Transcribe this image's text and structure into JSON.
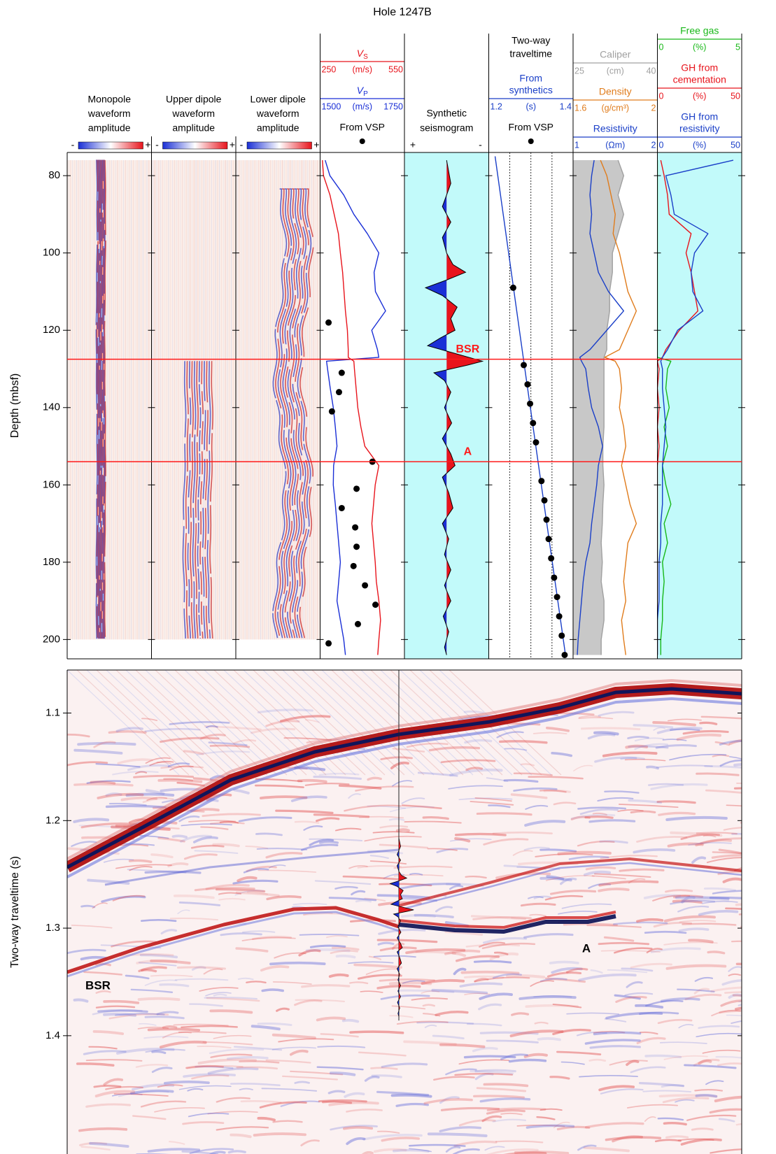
{
  "chart_data": [
    {
      "type": "log",
      "title": "Hole 1247B",
      "ylabel": "Depth (mbsf)",
      "ylim": [
        74,
        205
      ],
      "yticks": [
        80,
        100,
        120,
        140,
        160,
        180,
        200
      ],
      "depth": [
        76,
        80,
        85,
        90,
        95,
        100,
        105,
        110,
        115,
        120,
        125,
        127,
        128,
        130,
        135,
        140,
        145,
        150,
        155,
        160,
        165,
        170,
        175,
        180,
        185,
        190,
        195,
        200,
        204
      ],
      "horizons": [
        {
          "label": "BSR",
          "value": 127.5,
          "color": "#ff1a1a"
        },
        {
          "label": "A",
          "value": 154,
          "color": "#ff1a1a"
        }
      ],
      "tracks": [
        {
          "type": "waveform",
          "title": [
            "Monopole",
            "waveform",
            "amplitude"
          ],
          "ends": [
            "-",
            "+"
          ],
          "interval": [
            76,
            200
          ]
        },
        {
          "type": "waveform",
          "title": [
            "Upper dipole",
            "waveform",
            "amplitude"
          ],
          "ends": [
            "-",
            "+"
          ],
          "interval": [
            76,
            200
          ]
        },
        {
          "type": "waveform",
          "title": [
            "Lower dipole",
            "waveform",
            "amplitude"
          ],
          "ends": [
            "-",
            "+"
          ],
          "interval": [
            76,
            200
          ]
        },
        {
          "type": "log",
          "series": [
            {
              "name": [
                "V"
              ],
              "sub": "S",
              "color": "#e8141c",
              "xlim": [
                250,
                550
              ],
              "unit": "(m/s)",
              "values": [
                258,
                262,
                285,
                300,
                315,
                322,
                330,
                335,
                340,
                347,
                350,
                350,
                370,
                372,
                378,
                384,
                395,
                409,
                459,
                446,
                440,
                434,
                440,
                446,
                450,
                459,
                465,
                459,
                455
              ]
            },
            {
              "name": [
                "V"
              ],
              "sub": "P",
              "color": "#1a2fd6",
              "xlim": [
                1500,
                1750
              ],
              "unit": "(m/s)",
              "values": [
                1515,
                1529,
                1570,
                1600,
                1640,
                1674,
                1660,
                1664,
                1694,
                1653,
                1670,
                1674,
                1519,
                1522,
                1530,
                1539,
                1545,
                1550,
                1540,
                1539,
                1545,
                1550,
                1555,
                1560,
                1555,
                1550,
                1560,
                1570,
                1575
              ]
            }
          ],
          "points": {
            "name": "From VSP",
            "color": "#000000",
            "axis": 1,
            "depth": [
              118,
              131,
              136,
              141,
              154,
              161,
              166,
              171,
              176,
              181,
              186,
              191,
              196,
              201
            ],
            "values": [
              1525,
              1564,
              1556,
              1535,
              1655,
              1608,
              1564,
              1604,
              1608,
              1599,
              1633,
              1664,
              1612,
              1525
            ]
          }
        },
        {
          "type": "synthetic",
          "title": [
            "Synthetic",
            "seismogram"
          ],
          "ends": [
            "+",
            "-"
          ],
          "background": "#c2fafa",
          "series": [
            {
              "xlim": [
                1,
                -1
              ],
              "pos_color": "#1a2fd6",
              "neg_color": "#e8141c",
              "depth": [
                76,
                82,
                88,
                92,
                96,
                100,
                103,
                105,
                107,
                109,
                111,
                114,
                117,
                120,
                122,
                124,
                126,
                128,
                129,
                131,
                133,
                136,
                140,
                144,
                148,
                152,
                155,
                158,
                162,
                166,
                170,
                174,
                178,
                182,
                186,
                190,
                194,
                198,
                202,
                204
              ],
              "values": [
                0,
                -0.1,
                0.1,
                -0.1,
                0.1,
                0,
                -0.15,
                -0.45,
                0,
                0.5,
                0.1,
                -0.25,
                -0.1,
                -0.2,
                0.15,
                0.45,
                -0.2,
                -0.85,
                -0.5,
                0.3,
                0.05,
                -0.1,
                0.05,
                -0.12,
                0.1,
                -0.1,
                -0.2,
                0.1,
                -0.05,
                -0.15,
                0.1,
                -0.05,
                0.05,
                -0.1,
                0.05,
                -0.1,
                0.08,
                -0.05,
                0.05,
                0
              ]
            }
          ]
        },
        {
          "type": "log",
          "title": [
            "Two-way",
            "traveltime"
          ],
          "xgrid": [
            1.25,
            1.3,
            1.35
          ],
          "series": [
            {
              "name": [
                "From",
                "synthetics"
              ],
              "color": "#1a3fc8",
              "xlim": [
                1.2,
                1.4
              ],
              "unit": "(s)",
              "depth": [
                75,
                128,
                204
              ],
              "values": [
                1.215,
                1.283,
                1.382
              ]
            }
          ],
          "points": {
            "name": "From VSP",
            "color": "#000000",
            "axis": 0,
            "depth": [
              109,
              129,
              134,
              139,
              144,
              149,
              159,
              164,
              169,
              174,
              179,
              184,
              189,
              194,
              199,
              204
            ],
            "values": [
              1.258,
              1.283,
              1.292,
              1.298,
              1.305,
              1.312,
              1.325,
              1.332,
              1.337,
              1.342,
              1.348,
              1.355,
              1.362,
              1.367,
              1.373,
              1.38
            ]
          }
        },
        {
          "type": "log",
          "series": [
            {
              "name": [
                "Caliper"
              ],
              "color": "#a0a0a0",
              "fill": "left",
              "fill_color": "#c8c8c8",
              "xlim": [
                25,
                40
              ],
              "unit": "(cm)",
              "values": [
                33,
                34,
                33,
                34,
                33,
                32,
                32,
                31.5,
                31.5,
                31,
                31,
                30.5,
                30.5,
                30.5,
                30.5,
                30.5,
                30.5,
                30.3,
                30.3,
                30.5,
                30.3,
                30.2,
                30,
                30.2,
                30,
                30.5,
                30.5,
                30,
                30
              ]
            },
            {
              "name": [
                "Density"
              ],
              "color": "#e07c1c",
              "xlim": [
                1.6,
                2
              ],
              "unit": "(g/cm³)",
              "values": [
                1.73,
                1.76,
                1.78,
                1.8,
                1.79,
                1.82,
                1.84,
                1.86,
                1.9,
                1.86,
                1.82,
                1.75,
                1.8,
                1.82,
                1.83,
                1.82,
                1.84,
                1.85,
                1.83,
                1.85,
                1.87,
                1.9,
                1.86,
                1.85,
                1.84,
                1.85,
                1.83,
                1.84,
                1.85
              ]
            },
            {
              "name": [
                "Resistivity"
              ],
              "color": "#1a3fc8",
              "xlim": [
                1,
                2
              ],
              "unit": "(Ωm)",
              "values": [
                1.25,
                1.22,
                1.2,
                1.22,
                1.2,
                1.25,
                1.3,
                1.42,
                1.6,
                1.4,
                1.2,
                1.08,
                1.1,
                1.15,
                1.18,
                1.22,
                1.3,
                1.35,
                1.3,
                1.28,
                1.25,
                1.22,
                1.2,
                1.15,
                1.12,
                1.1,
                1.08,
                1.06,
                1.05
              ]
            }
          ]
        },
        {
          "type": "log",
          "background": "#c2fafa",
          "series": [
            {
              "name": [
                "Free gas"
              ],
              "color": "#18b818",
              "xlim": [
                0,
                5
              ],
              "unit": "(%)",
              "values": [
                0,
                0,
                0,
                0,
                0,
                0,
                0,
                0,
                0,
                0,
                0,
                0,
                0.8,
                0.6,
                0.5,
                0.7,
                0.4,
                0.6,
                0.3,
                0.5,
                0.8,
                0.4,
                0.6,
                0.3,
                0.4,
                0.3,
                0.3,
                0.2,
                0.2
              ]
            },
            {
              "name": [
                "GH from",
                "cementation"
              ],
              "color": "#e8141c",
              "xlim": [
                0,
                50
              ],
              "unit": "(%)",
              "values": [
                2,
                4,
                6,
                7,
                20,
                17,
                20,
                22,
                24,
                13,
                5,
                3,
                0,
                1,
                0,
                1,
                0,
                1,
                0,
                0,
                0,
                0,
                0,
                0,
                0,
                0,
                0,
                0,
                0
              ]
            },
            {
              "name": [
                "GH from",
                "resistivity"
              ],
              "color": "#1a3fc8",
              "xlim": [
                0,
                50
              ],
              "unit": "(%)",
              "values": [
                45,
                5,
                8,
                10,
                30,
                22,
                20,
                21,
                27,
                12,
                6,
                3,
                2,
                3,
                3,
                4,
                5,
                4,
                3,
                3,
                3,
                2,
                2,
                1,
                1,
                1,
                0,
                0,
                0
              ]
            }
          ]
        }
      ]
    },
    {
      "type": "seismic",
      "ylabel": "Two-way traveltime (s)",
      "ylim": [
        1.06,
        1.51
      ],
      "yticks": [
        1.1,
        1.2,
        1.3,
        1.4
      ],
      "annotations": [
        "BSR",
        "A"
      ]
    }
  ]
}
